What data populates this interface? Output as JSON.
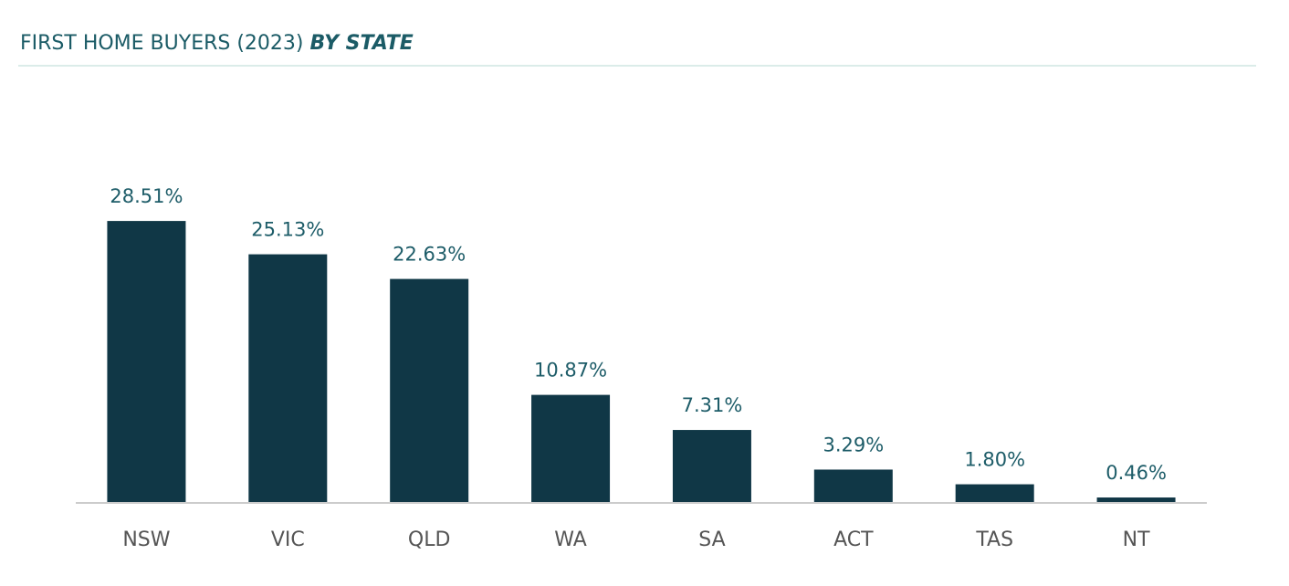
{
  "chart_data": {
    "type": "bar",
    "title": "FIRST HOME BUYERS (2023)",
    "title_emphasis": "BY STATE",
    "categories": [
      "NSW",
      "VIC",
      "QLD",
      "WA",
      "SA",
      "ACT",
      "TAS",
      "NT"
    ],
    "values": [
      28.51,
      25.13,
      22.63,
      10.87,
      7.31,
      3.29,
      1.8,
      0.46
    ],
    "value_labels": [
      "28.51%",
      "25.13%",
      "22.63%",
      "10.87%",
      "7.31%",
      "3.29%",
      "1.80%",
      "0.46%"
    ],
    "color": "#103746",
    "ylim": [
      0,
      30
    ]
  }
}
